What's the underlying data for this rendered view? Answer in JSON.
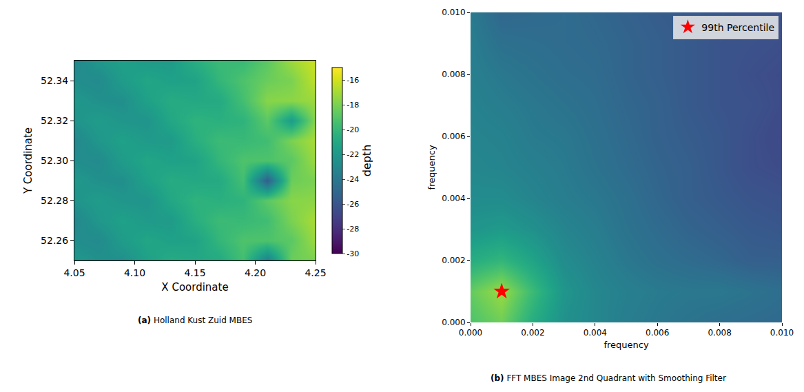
{
  "chart_data": [
    {
      "type": "heatmap",
      "label": "(a)",
      "caption": "Holland Kust Zuid MBES",
      "xlabel": "X Coordinate",
      "ylabel": "Y Coordinate",
      "x": [
        4.05,
        4.07,
        4.09,
        4.11,
        4.13,
        4.15,
        4.17,
        4.19,
        4.21,
        4.23,
        4.25
      ],
      "y": [
        52.25,
        52.26,
        52.27,
        52.28,
        52.29,
        52.3,
        52.31,
        52.32,
        52.33,
        52.34,
        52.35
      ],
      "z": [
        [
          -22.0,
          -22.5,
          -22.6,
          -21.5,
          -20.8,
          -21.0,
          -20.9,
          -19.5,
          -23.5,
          -18.4,
          -18.0
        ],
        [
          -22.7,
          -22.9,
          -21.8,
          -21.2,
          -21.5,
          -21.4,
          -20.1,
          -19.2,
          -19.2,
          -18.8,
          -17.2
        ],
        [
          -23.1,
          -22.1,
          -21.5,
          -21.9,
          -21.9,
          -20.6,
          -19.8,
          -19.9,
          -19.6,
          -18.0,
          -16.9
        ],
        [
          -22.3,
          -21.8,
          -22.2,
          -22.3,
          -21.1,
          -20.3,
          -20.5,
          -20.3,
          -18.8,
          -17.7,
          -17.6
        ],
        [
          -22.0,
          -22.5,
          -22.6,
          -21.5,
          -20.8,
          -21.0,
          -20.9,
          -19.5,
          -25.5,
          -18.4,
          -18.0
        ],
        [
          -22.7,
          -22.9,
          -21.8,
          -21.2,
          -21.5,
          -21.4,
          -20.1,
          -19.2,
          -19.2,
          -18.8,
          -17.2
        ],
        [
          -23.1,
          -22.1,
          -21.5,
          -21.9,
          -21.9,
          -20.6,
          -19.8,
          -19.9,
          -19.6,
          -18.0,
          -16.9
        ],
        [
          -22.3,
          -21.8,
          -22.2,
          -22.3,
          -21.1,
          -20.3,
          -20.5,
          -20.3,
          -18.8,
          -21.8,
          -17.6
        ],
        [
          -22.0,
          -22.5,
          -22.6,
          -21.5,
          -20.8,
          -21.0,
          -20.9,
          -19.5,
          -17.7,
          -17.6,
          -17.2
        ],
        [
          -22.7,
          -22.9,
          -21.8,
          -21.2,
          -21.5,
          -21.4,
          -20.1,
          -19.2,
          -18.4,
          -18.0,
          -16.4
        ],
        [
          -23.1,
          -22.1,
          -21.5,
          -21.9,
          -21.9,
          -20.6,
          -19.8,
          -19.9,
          -18.8,
          -17.2,
          -16.1
        ]
      ],
      "colorbar_title": "depth",
      "zlim": [
        -30,
        -15
      ],
      "zticks": [
        -16,
        -18,
        -20,
        -22,
        -24,
        -26,
        -28,
        -30
      ],
      "xlim": [
        4.05,
        4.25
      ],
      "ylim": [
        52.25,
        52.35
      ],
      "xticks": [
        4.05,
        {
          "value": 4.1,
          "label": "4.10"
        },
        4.15,
        {
          "value": 4.2,
          "label": "4.20"
        },
        4.25
      ],
      "yticks": [
        52.26,
        52.28,
        {
          "value": 52.3,
          "label": "52.30"
        },
        52.32,
        52.34
      ]
    },
    {
      "type": "heatmap",
      "label": "(b)",
      "caption": "FFT MBES Image 2nd Quadrant with Smoothing Filter",
      "xlabel": "frequency",
      "ylabel": "frequency",
      "x": [
        0,
        0.001,
        0.002,
        0.003,
        0.004,
        0.005,
        0.006,
        0.007,
        0.008,
        0.009,
        0.01
      ],
      "y": [
        0,
        0.001,
        0.002,
        0.003,
        0.004,
        0.005,
        0.006,
        0.007,
        0.008,
        0.009,
        0.01
      ],
      "z": [
        [
          0.72,
          0.78,
          0.62,
          0.5,
          0.46,
          0.42,
          0.4,
          0.38,
          0.36,
          0.35,
          0.34
        ],
        [
          0.76,
          0.85,
          0.68,
          0.52,
          0.46,
          0.43,
          0.41,
          0.4,
          0.4,
          0.38,
          0.36
        ],
        [
          0.62,
          0.66,
          0.58,
          0.48,
          0.44,
          0.4,
          0.37,
          0.35,
          0.33,
          0.3,
          0.3
        ],
        [
          0.52,
          0.54,
          0.5,
          0.45,
          0.42,
          0.38,
          0.35,
          0.32,
          0.3,
          0.28,
          0.27
        ],
        [
          0.48,
          0.48,
          0.45,
          0.42,
          0.4,
          0.37,
          0.33,
          0.3,
          0.28,
          0.26,
          0.25
        ],
        [
          0.46,
          0.45,
          0.43,
          0.41,
          0.38,
          0.35,
          0.32,
          0.3,
          0.27,
          0.24,
          0.23
        ],
        [
          0.45,
          0.44,
          0.41,
          0.4,
          0.37,
          0.34,
          0.31,
          0.29,
          0.27,
          0.24,
          0.22
        ],
        [
          0.44,
          0.42,
          0.4,
          0.38,
          0.36,
          0.33,
          0.31,
          0.28,
          0.26,
          0.25,
          0.23
        ],
        [
          0.43,
          0.4,
          0.38,
          0.36,
          0.35,
          0.32,
          0.3,
          0.28,
          0.26,
          0.24,
          0.23
        ],
        [
          0.42,
          0.37,
          0.36,
          0.35,
          0.34,
          0.32,
          0.3,
          0.28,
          0.26,
          0.25,
          0.24
        ],
        [
          0.41,
          0.33,
          0.34,
          0.35,
          0.33,
          0.31,
          0.29,
          0.28,
          0.27,
          0.26,
          0.25
        ]
      ],
      "zlim": [
        0,
        1
      ],
      "xlim": [
        0,
        0.01
      ],
      "ylim": [
        0,
        0.01
      ],
      "xticks": [
        {
          "value": 0,
          "label": "0.000"
        },
        0.002,
        0.004,
        0.006,
        0.008,
        {
          "value": 0.01,
          "label": "0.010"
        }
      ],
      "yticks": [
        {
          "value": 0,
          "label": "0.000"
        },
        0.002,
        0.004,
        0.006,
        0.008,
        {
          "value": 0.01,
          "label": "0.010"
        }
      ],
      "series": [
        {
          "name": "99th Percentile",
          "type": "scatter",
          "marker": "star",
          "color": "#ff0000",
          "x": [
            0.001
          ],
          "y": [
            0.001
          ]
        }
      ],
      "legend": "upper right"
    }
  ]
}
